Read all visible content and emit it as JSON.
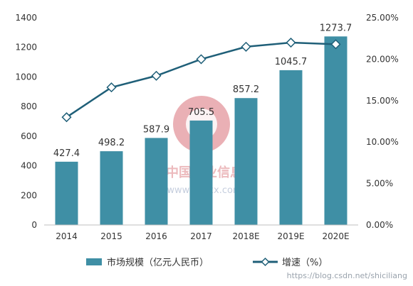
{
  "chart_data": {
    "type": "bar",
    "categories": [
      "2014",
      "2015",
      "2016",
      "2017",
      "2018E",
      "2019E",
      "2020E"
    ],
    "series": [
      {
        "name": "市场规模（亿元人民币）",
        "type": "bar",
        "axis": "left",
        "color": "#3f8fa5",
        "values": [
          427.4,
          498.2,
          587.9,
          705.5,
          857.2,
          1045.7,
          1273.7
        ],
        "labels": [
          "427.4",
          "498.2",
          "587.9",
          "705.5",
          "857.2",
          "1045.7",
          "1273.7"
        ]
      },
      {
        "name": "增速（%）",
        "type": "line",
        "axis": "right",
        "color": "#1f5f78",
        "marker": "diamond",
        "values": [
          13.0,
          16.6,
          18.0,
          20.0,
          21.5,
          22.0,
          21.8
        ]
      }
    ],
    "ylim_left": [
      0,
      1400
    ],
    "ylim_right": [
      0,
      25
    ],
    "yticks_left": [
      "0",
      "200",
      "400",
      "600",
      "800",
      "1000",
      "1200",
      "1400"
    ],
    "yticks_right": [
      "0.00%",
      "5.00%",
      "10.00%",
      "15.00%",
      "20.00%",
      "25.00%"
    ],
    "grid": false,
    "legend_position": "bottom-center"
  },
  "watermark": {
    "logo_text": "中国产业信息",
    "logo_url": "www.chyxx.com",
    "credit": "https://blog.csdn.net/shiciliang"
  }
}
